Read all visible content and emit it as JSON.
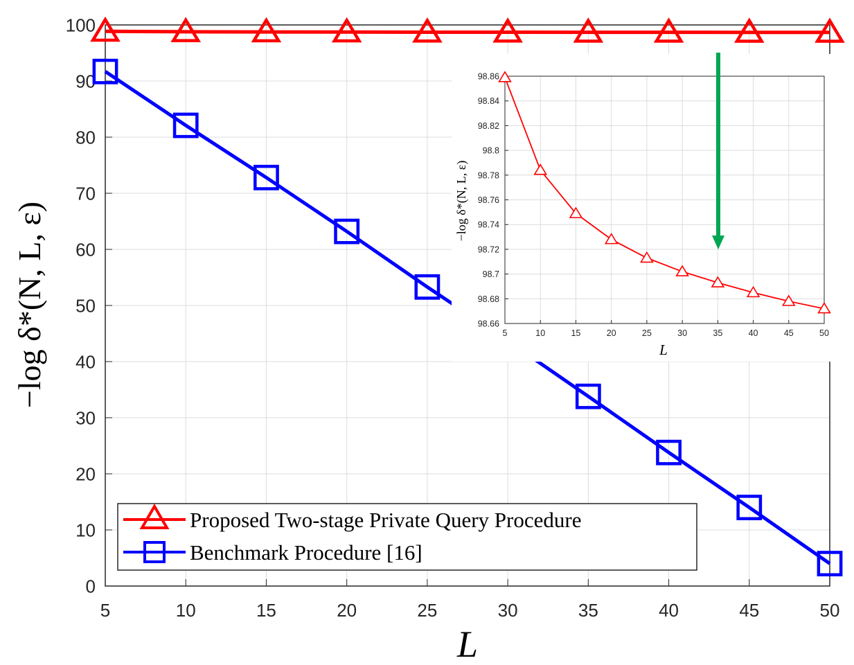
{
  "chart_data": [
    {
      "type": "line",
      "role": "main",
      "xlabel": "L",
      "ylabel": "−log δ*(N, L, ε)",
      "xlim": [
        5,
        50
      ],
      "ylim": [
        0,
        100
      ],
      "x": [
        5,
        10,
        15,
        20,
        25,
        30,
        35,
        40,
        45,
        50
      ],
      "xticks": [
        "5",
        "10",
        "15",
        "20",
        "25",
        "30",
        "35",
        "40",
        "45",
        "50"
      ],
      "yticks": [
        "0",
        "10",
        "20",
        "30",
        "40",
        "50",
        "60",
        "70",
        "80",
        "90",
        "100"
      ],
      "grid": true,
      "legend_position": "bottom-left",
      "series": [
        {
          "name": "Proposed Two-stage Private Query Procedure",
          "color": "#ff0000",
          "marker": "triangle",
          "values": [
            98.86,
            98.78,
            98.75,
            98.73,
            98.71,
            98.7,
            98.69,
            98.69,
            98.68,
            98.67
          ]
        },
        {
          "name": "Benchmark Procedure [16]",
          "color": "#0000ff",
          "marker": "square",
          "values": [
            91.7,
            82.1,
            72.8,
            63.2,
            53.3,
            43.7,
            33.8,
            23.8,
            14.0,
            4.0
          ]
        }
      ]
    },
    {
      "type": "line",
      "role": "inset",
      "xlabel": "L",
      "ylabel": "−log δ*(N, L, ε)",
      "xlim": [
        5,
        50
      ],
      "ylim": [
        98.66,
        98.86
      ],
      "x": [
        5,
        10,
        15,
        20,
        25,
        30,
        35,
        40,
        45,
        50
      ],
      "xticks": [
        "5",
        "10",
        "15",
        "20",
        "25",
        "30",
        "35",
        "40",
        "45",
        "50"
      ],
      "yticks": [
        "98.66",
        "98.68",
        "98.7",
        "98.72",
        "98.74",
        "98.76",
        "98.78",
        "98.8",
        "98.82",
        "98.84",
        "98.86"
      ],
      "grid": true,
      "series": [
        {
          "color": "#ff0000",
          "marker": "triangle",
          "values": [
            98.859,
            98.784,
            98.749,
            98.728,
            98.713,
            98.702,
            98.693,
            98.685,
            98.678,
            98.672
          ]
        }
      ],
      "annotation_arrow_color": "#00a651"
    }
  ]
}
